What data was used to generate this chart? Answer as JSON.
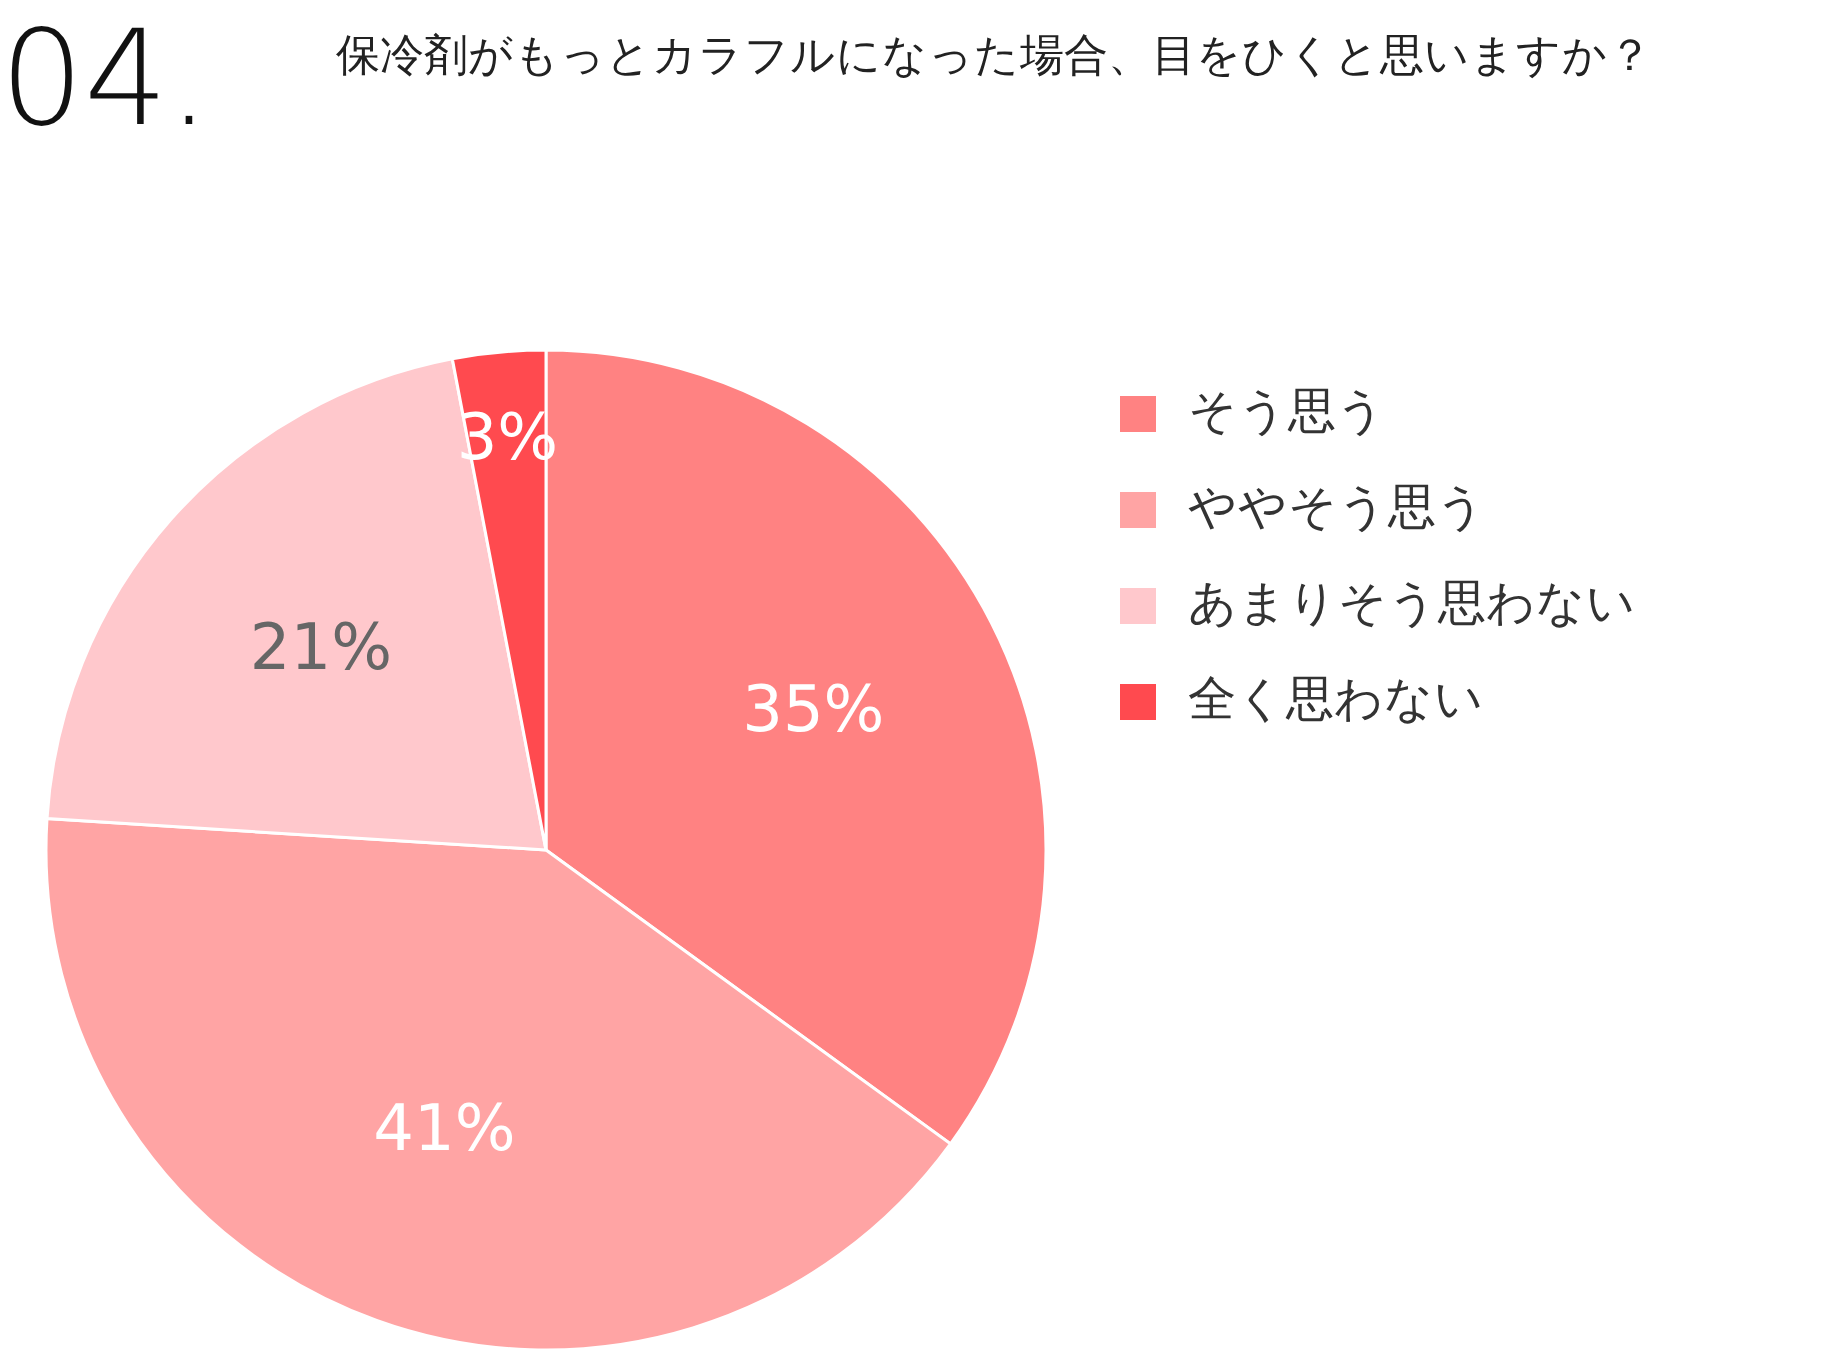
{
  "chart_data": {
    "type": "pie",
    "title": "04.",
    "subtitle": "保冷剤がもっとカラフルになった場合、目をひくと思いますか？",
    "categories": [
      "そう思う",
      "ややそう思う",
      "あまりそう思わない",
      "全く思わない"
    ],
    "values": [
      35,
      41,
      21,
      3
    ],
    "colors": [
      "#ff8282",
      "#ffa4a4",
      "#ffc8cc",
      "#ff4a4f"
    ],
    "value_labels": [
      "35%",
      "41%",
      "21%",
      "3%"
    ],
    "legend": "right"
  }
}
